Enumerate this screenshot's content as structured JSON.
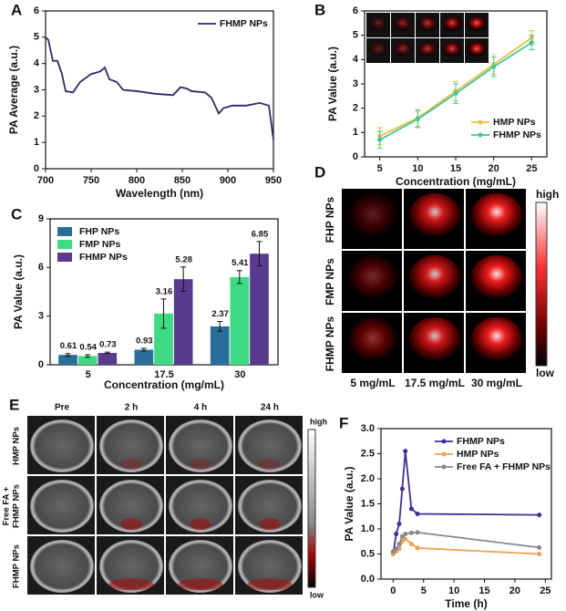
{
  "chart_data": [
    {
      "panel": "A",
      "type": "line",
      "xlabel": "Wavelength (nm)",
      "ylabel": "PA Average (a.u.)",
      "xlim": [
        700,
        950
      ],
      "xticks": [
        700,
        750,
        800,
        850,
        900,
        950
      ],
      "ylim": [
        0,
        6
      ],
      "yticks": [
        0,
        1,
        2,
        3,
        4,
        5,
        6
      ],
      "legend": "upper right",
      "markers": false,
      "x": [
        700,
        703,
        708,
        713,
        718,
        722,
        730,
        738,
        750,
        760,
        765,
        770,
        778,
        785,
        800,
        820,
        840,
        848,
        855,
        860,
        875,
        882,
        890,
        895,
        905,
        920,
        935,
        945,
        950
      ],
      "series": [
        {
          "name": "FHMP NPs",
          "color": "#2b2a6b",
          "values": [
            5.0,
            4.9,
            4.1,
            4.1,
            3.6,
            2.95,
            2.9,
            3.3,
            3.6,
            3.7,
            3.85,
            3.4,
            3.3,
            3.0,
            2.95,
            2.85,
            2.8,
            3.1,
            3.05,
            2.95,
            2.9,
            2.7,
            2.1,
            2.3,
            2.4,
            2.4,
            2.5,
            2.4,
            1.1
          ]
        }
      ]
    },
    {
      "panel": "B",
      "type": "line",
      "xlabel": "Concentration (mg/mL)",
      "ylabel": "PA Value (a.u.)",
      "xlim": [
        3,
        27
      ],
      "xticks": [
        5,
        10,
        15,
        20,
        25
      ],
      "ylim": [
        0,
        6
      ],
      "yticks": [
        0,
        1,
        2,
        3,
        4,
        5,
        6
      ],
      "legend": "lower right",
      "markers": true,
      "x": [
        5,
        10,
        15,
        20,
        25
      ],
      "series": [
        {
          "name": "HMP NPs",
          "color": "#efbf3f",
          "values": [
            0.85,
            1.6,
            2.7,
            3.8,
            4.9
          ],
          "errors": [
            0.35,
            0.35,
            0.4,
            0.4,
            0.3
          ]
        },
        {
          "name": "FHMP NPs",
          "color": "#3cc79e",
          "values": [
            0.7,
            1.55,
            2.6,
            3.7,
            4.7
          ],
          "errors": [
            0.35,
            0.35,
            0.4,
            0.4,
            0.3
          ]
        }
      ]
    },
    {
      "panel": "C",
      "type": "bar",
      "xlabel": "Concentration (mg/mL)",
      "ylabel": "PA Value (a.u.)",
      "categories": [
        "5",
        "17.5",
        "30"
      ],
      "ylim": [
        0,
        9
      ],
      "yticks": [
        0,
        3,
        6,
        9
      ],
      "legend": "upper left",
      "series": [
        {
          "name": "FHP NPs",
          "color": "#2a6e9a",
          "values": [
            0.61,
            0.93,
            2.37
          ],
          "errors": [
            0.08,
            0.08,
            0.3
          ]
        },
        {
          "name": "FMP NPs",
          "color": "#3ddc84",
          "values": [
            0.54,
            3.16,
            5.41
          ],
          "errors": [
            0.08,
            0.9,
            0.4
          ]
        },
        {
          "name": "FHMP NPs",
          "color": "#5a3a8e",
          "values": [
            0.73,
            5.28,
            6.85
          ],
          "errors": [
            0.05,
            0.75,
            0.75
          ]
        }
      ]
    },
    {
      "panel": "F",
      "type": "line",
      "xlabel": "Time (h)",
      "ylabel": "PA Value (a.u.)",
      "xlim": [
        -2,
        26
      ],
      "xticks": [
        0,
        5,
        10,
        15,
        20,
        25
      ],
      "ylim": [
        0,
        3
      ],
      "yticks": [
        {
          "value": 0,
          "label": "0.0"
        },
        0.5,
        {
          "value": 1,
          "label": "1.0"
        },
        1.5,
        {
          "value": 2,
          "label": "2.0"
        },
        2.5,
        {
          "value": 3,
          "label": "3.0"
        }
      ],
      "legend": "upper right",
      "markers": true,
      "x": [
        0,
        0.5,
        1,
        1.5,
        2,
        3,
        4,
        24
      ],
      "series": [
        {
          "name": "FHMP NPs",
          "color": "#3b2f9e",
          "values": [
            0.5,
            0.9,
            1.1,
            1.8,
            2.55,
            1.4,
            1.3,
            1.28
          ]
        },
        {
          "name": "HMP NPs",
          "color": "#f0a050",
          "values": [
            0.5,
            0.55,
            0.6,
            0.75,
            0.8,
            0.7,
            0.62,
            0.5
          ]
        },
        {
          "name": "Free FA + FHMP NPs",
          "color": "#888888",
          "values": [
            0.55,
            0.6,
            0.7,
            0.85,
            0.9,
            0.92,
            0.93,
            0.63
          ]
        }
      ]
    }
  ],
  "image_panels": [
    {
      "panel": "D",
      "columns": [
        "5 mg/mL",
        "17.5 mg/mL",
        "30 mg/mL"
      ],
      "rows": [
        "FHP NPs",
        "FMP NPs",
        "FHMP NPs"
      ],
      "colorbar": [
        "high",
        "low"
      ]
    },
    {
      "panel": "E",
      "columns": [
        "Pre",
        "2 h",
        "4 h",
        "24 h"
      ],
      "rows": [
        "HMP NPs",
        [
          "Free FA +",
          "FHMP NPs"
        ],
        "FHMP NPs"
      ],
      "colorbar": [
        "high",
        "low"
      ]
    }
  ]
}
